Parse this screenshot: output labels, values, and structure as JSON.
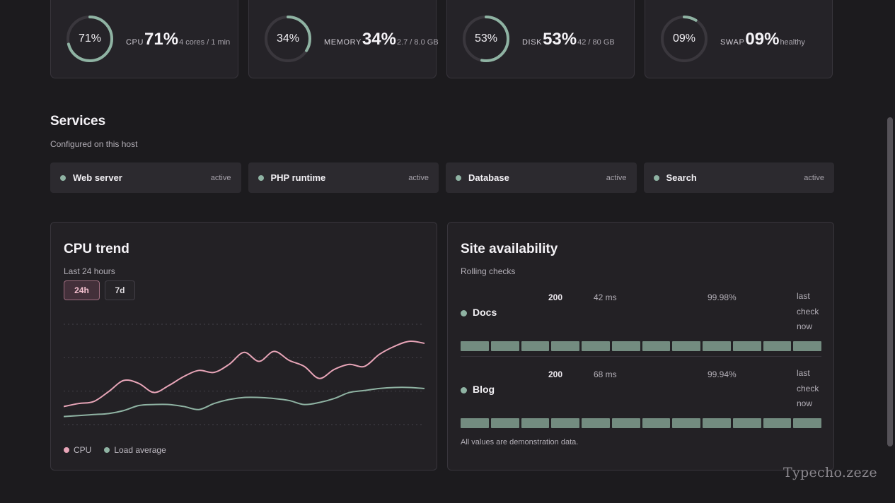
{
  "metrics": [
    {
      "label": "CPU",
      "ring_text": "71%",
      "value": "71%",
      "detail": "4 cores / 1 min",
      "fraction": 0.71
    },
    {
      "label": "MEMORY",
      "ring_text": "34%",
      "value": "34%",
      "detail": "2.7 / 8.0 GB",
      "fraction": 0.34
    },
    {
      "label": "DISK",
      "ring_text": "53%",
      "value": "53%",
      "detail": "42 / 80 GB",
      "fraction": 0.53
    },
    {
      "label": "SWAP",
      "ring_text": "09%",
      "value": "09%",
      "detail": "healthy",
      "fraction": 0.09
    }
  ],
  "services": {
    "title": "Services",
    "subtitle": "Configured on this host",
    "items": [
      {
        "name": "Web server",
        "status": "active"
      },
      {
        "name": "PHP runtime",
        "status": "active"
      },
      {
        "name": "Database",
        "status": "active"
      },
      {
        "name": "Search",
        "status": "active"
      }
    ]
  },
  "cpu_trend": {
    "title": "CPU trend",
    "subtitle": "Last 24 hours",
    "ranges": [
      "24h",
      "7d"
    ],
    "selected_range": "24h",
    "legend": [
      "CPU",
      "Load average"
    ]
  },
  "chart_data": {
    "type": "line",
    "title": "CPU trend",
    "subtitle": "Last 24 hours",
    "xlabel": "",
    "ylabel": "",
    "grid": true,
    "legend_position": "bottom-left",
    "x": [
      0,
      1,
      2,
      3,
      4,
      5,
      6,
      7,
      8,
      9,
      10,
      11,
      12,
      13,
      14,
      15,
      16,
      17,
      18,
      19,
      20,
      21,
      22,
      23,
      24
    ],
    "ylim": [
      0,
      100
    ],
    "series": [
      {
        "name": "CPU",
        "color": "#e8a5b8",
        "values": [
          18,
          21,
          23,
          33,
          44,
          41,
          32,
          39,
          48,
          54,
          52,
          60,
          72,
          63,
          73,
          64,
          58,
          46,
          55,
          60,
          58,
          70,
          78,
          83,
          81
        ]
      },
      {
        "name": "Load average",
        "color": "#8fb3a3",
        "values": [
          8,
          9,
          10,
          11,
          14,
          19,
          20,
          20,
          18,
          15,
          21,
          25,
          27,
          27,
          26,
          24,
          20,
          22,
          26,
          32,
          34,
          36,
          37,
          37,
          36
        ]
      }
    ]
  },
  "site_availability": {
    "title": "Site availability",
    "subtitle": "Rolling checks",
    "sites": [
      {
        "name": "Docs",
        "code": "200",
        "latency": "42 ms",
        "uptime": "99.98%",
        "last_check": "last check now"
      },
      {
        "name": "Blog",
        "code": "200",
        "latency": "68 ms",
        "uptime": "99.94%",
        "last_check": "last check now"
      }
    ],
    "note": "All values are demonstration data."
  },
  "watermark": "Typecho.zeze",
  "colors": {
    "background": "#1c1b1e",
    "card": "#252328",
    "accent_teal": "#8fb3a3",
    "accent_pink": "#e8a5b8",
    "ring_track": "#3a373d"
  }
}
